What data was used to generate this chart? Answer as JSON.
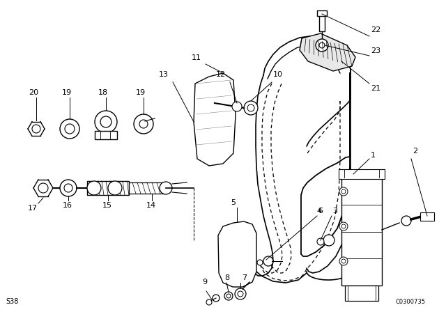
{
  "bg_color": "#ffffff",
  "line_color": "#000000",
  "fig_width": 6.4,
  "fig_height": 4.48,
  "dpi": 100,
  "watermark": "C0300735",
  "series_code": "S38"
}
